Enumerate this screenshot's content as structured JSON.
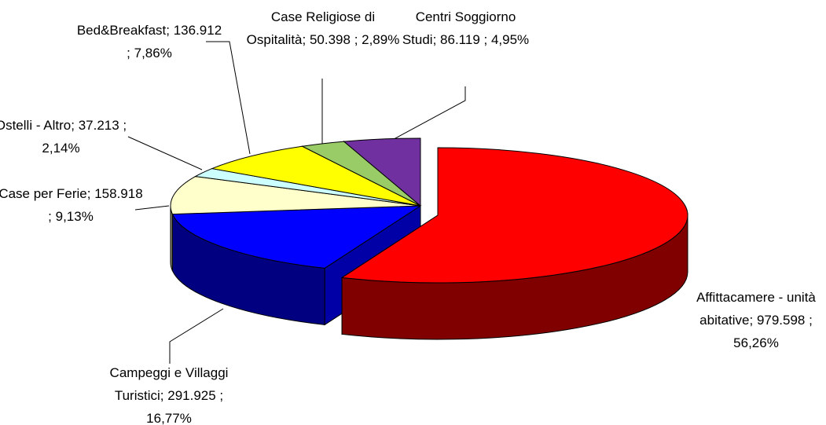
{
  "chart_data": {
    "type": "pie",
    "three_d": true,
    "categories": [
      "Affittacamere - unità abitative;",
      "Campeggi e Villaggi Turistici;",
      "Case per Ferie;",
      "Ostelli - Altro;",
      "Bed&Breakfast;",
      "Case Religiose di Ospitalità;",
      "Centri Soggiorno Studi;"
    ],
    "values": [
      56.26,
      16.77,
      9.13,
      2.14,
      7.86,
      2.89,
      4.95
    ],
    "value_labels": [
      "979.598 ; 56,26%",
      "291.925 ; 16,77%",
      "158.918 ; 9,13%",
      "37.213 ; 2,14%",
      "136.912 ; 7,86%",
      " 50.398 ; 2,89%",
      " 86.119 ; 4,95%"
    ],
    "colors": [
      "#ff0000",
      "#0000ff",
      "#ffffcc",
      "#ccffff",
      "#ffff00",
      "#99cc66",
      "#7030a0"
    ]
  }
}
